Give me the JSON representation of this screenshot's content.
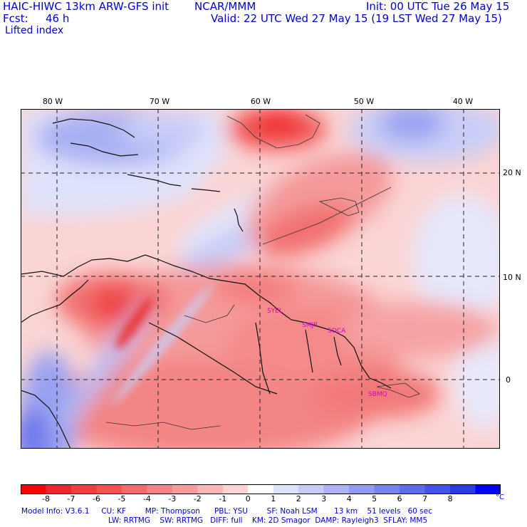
{
  "header": {
    "model_title": "HAIC-HIWC 13km ARW-GFS init",
    "org": "NCAR/MMM",
    "init": "Init: 00 UTC Tue 26 May 15",
    "fcst_label": "Fcst:",
    "fcst_value": "46 h",
    "valid": "Valid: 22 UTC Wed 27 May 15 (19 LST Wed 27 May 15)",
    "field": "Lifted index"
  },
  "map": {
    "lon_labels": [
      "80 W",
      "70 W",
      "60 W",
      "50 W",
      "40 W"
    ],
    "lat_labels": [
      "20 N",
      "10 N",
      "0"
    ],
    "cities": [
      "SYEL",
      "SMJP",
      "SOCA",
      "SBMQ"
    ]
  },
  "colorbar": {
    "ticks": [
      "-8",
      "-7",
      "-6",
      "-5",
      "-4",
      "-3",
      "-2",
      "-1",
      "0",
      "1",
      "2",
      "3",
      "4",
      "5",
      "6",
      "7",
      "8"
    ],
    "unit": "°C",
    "colors": [
      "#ff0000",
      "#f2242b",
      "#f53c3c",
      "#f45252",
      "#f26a6a",
      "#f48484",
      "#f59c9c",
      "#f8b6b6",
      "#fbd4d4",
      "#ffffff",
      "#e0e2fb",
      "#c6caf7",
      "#acb2f4",
      "#929bf1",
      "#7884ee",
      "#5e6ceb",
      "#4454e8",
      "#2a3ce5",
      "#0000ff"
    ]
  },
  "footer": {
    "line1": "Model Info: V3.6.1     CU: KF        MP: Thompson      PBL: YSU        SF: Noah LSM       13 km    51 levels   60 sec",
    "line2": "LW: RRTMG    SW: RRTMG   DIFF: full    KM: 2D Smagor  DAMP: Rayleigh3  SFLAY: MM5"
  }
}
